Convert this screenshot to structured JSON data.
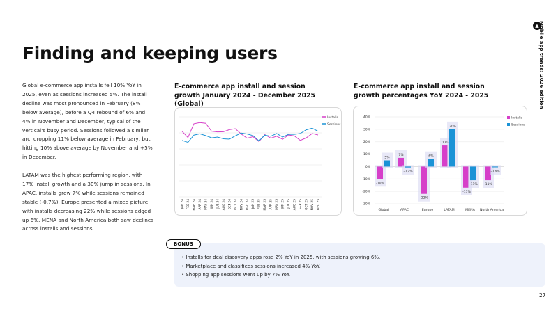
{
  "page": {
    "title": "Finding and keeping users",
    "side_label": "Mobile app trends: 2026 edition",
    "page_number": "27",
    "paragraphs": [
      "Global e-commerce app installs fell 10% YoY in 2025, even as sessions increased 5%. The install decline was most pronounced in February (8% below average), before a Q4 rebound of 6% and 4% in November and December, typical of the vertical's busy period. Sessions followed a similar arc, dropping 11% below average in February, but hitting 10% above average by November and +5% in December.",
      "LATAM was the highest performing region, with 17% install growth and a 30% jump in sessions. In APAC, installs grew 7% while sessions remained stable (-0.7%). Europe presented a mixed picture, with installs decreasing 22% while sessions edged up 6%. MENA and North America both saw declines across installs and sessions."
    ],
    "bonus": {
      "tag": "BONUS",
      "items": [
        "Installs for deal discovery apps rose 2% YoY in 2025, with sessions growing 6%.",
        "Marketplace and classifieds sessions increased 4% YoY.",
        "Shopping app sessions went up by 7% YoY."
      ]
    }
  },
  "colors": {
    "installs": "#d63fc9",
    "sessions": "#1b93d6",
    "highlight": "#d9d8f2"
  },
  "chart_data": [
    {
      "type": "line",
      "title": "E-commerce app install and session growth January 2024 - December 2025 (Global)",
      "x": [
        "JAN 24",
        "FEB 24",
        "MAR 24",
        "APR 24",
        "MAY 24",
        "JUN 24",
        "JUL 24",
        "AUG 24",
        "SEP 24",
        "OCT 24",
        "NOV 24",
        "DEC 24",
        "JAN 25",
        "FEB 25",
        "MAR 25",
        "APR 25",
        "MAY 25",
        "JUN 25",
        "JUL 25",
        "AUG 25",
        "SEP 25",
        "OCT 25",
        "NOV 25",
        "DEC 25"
      ],
      "series": [
        {
          "name": "Installs",
          "values": [
            4.1,
            3.71,
            4.57,
            4.64,
            4.6,
            4.1,
            4.06,
            4.07,
            4.2,
            4.26,
            3.93,
            3.67,
            3.76,
            3.46,
            3.89,
            3.67,
            3.79,
            3.6,
            3.87,
            3.81,
            3.53,
            3.69,
            3.96,
            3.87
          ]
        },
        {
          "name": "Sessions",
          "values": [
            3.53,
            3.41,
            3.86,
            3.94,
            3.83,
            3.69,
            3.74,
            3.63,
            3.61,
            3.81,
            3.99,
            3.93,
            3.83,
            3.5,
            3.86,
            3.79,
            3.96,
            3.74,
            3.91,
            3.91,
            3.96,
            4.19,
            4.29,
            4.1
          ]
        }
      ],
      "ylim": [
        0,
        5
      ],
      "grid": true,
      "legend": "top-right"
    },
    {
      "type": "bar",
      "title": "E-commerce app install and session growth percentages YoY 2024 - 2025",
      "categories": [
        "Global",
        "APAC",
        "Europe",
        "LATAM",
        "MENA",
        "North America"
      ],
      "series": [
        {
          "name": "Installs",
          "values": [
            -10,
            7,
            -22,
            17,
            -17,
            -11
          ],
          "labels": [
            "-10%",
            "7%",
            "-22%",
            "17%",
            "-17%",
            "-11%"
          ]
        },
        {
          "name": "Sessions",
          "values": [
            5,
            -0.7,
            6,
            30,
            -11,
            -0.6
          ],
          "labels": [
            "5%",
            "-0.7%",
            "6%",
            "30%",
            "-11%",
            "-0.6%"
          ]
        }
      ],
      "yticks": [
        "40%",
        "30%",
        "20%",
        "10%",
        "0%",
        "-10%",
        "-20%",
        "-30%"
      ],
      "ylim": [
        -30,
        40
      ],
      "grid": true,
      "legend": "top-right"
    }
  ]
}
